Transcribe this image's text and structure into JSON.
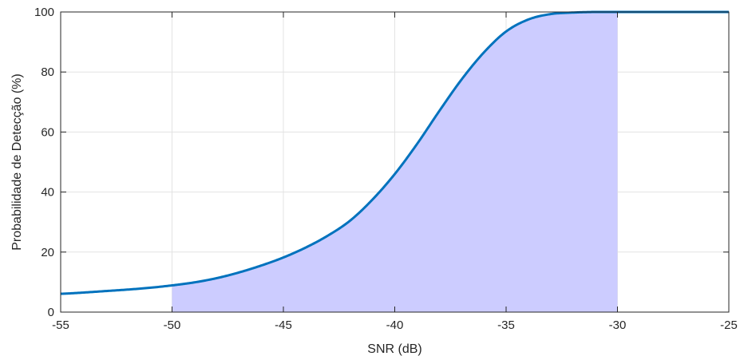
{
  "chart_data": {
    "type": "line",
    "xlabel": "SNR (dB)",
    "ylabel": "Probabilidade de Detecção (%)",
    "xlim": [
      -55,
      -25
    ],
    "ylim": [
      0,
      100
    ],
    "xticks": [
      -55,
      -50,
      -45,
      -40,
      -35,
      -30,
      -25
    ],
    "yticks": [
      0,
      20,
      40,
      60,
      80,
      100
    ],
    "xtick_labels": [
      "-55",
      "-50",
      "-45",
      "-40",
      "-35",
      "-30",
      "-25"
    ],
    "ytick_labels": [
      "0",
      "20",
      "40",
      "60",
      "80",
      "100"
    ],
    "grid": true,
    "series": [
      {
        "color": "#0072BD",
        "x": [
          -55,
          -54,
          -53,
          -52,
          -51,
          -50,
          -49,
          -48,
          -47,
          -46,
          -45,
          -44,
          -43,
          -42,
          -41,
          -40,
          -39,
          -38,
          -37,
          -36,
          -35,
          -34,
          -33,
          -32,
          -31,
          -30,
          -29,
          -28,
          -27,
          -26,
          -25
        ],
        "y": [
          6.1,
          6.5,
          7.0,
          7.5,
          8.1,
          8.9,
          9.9,
          11.3,
          13.2,
          15.5,
          18.2,
          21.5,
          25.5,
          30.5,
          37.5,
          46.0,
          56.0,
          67.0,
          77.5,
          86.5,
          93.5,
          97.5,
          99.3,
          99.8,
          100,
          100,
          100,
          100,
          100,
          100,
          100
        ]
      }
    ],
    "shaded_region": {
      "x_range": [
        -50,
        -30
      ],
      "color": "#CCCCFF"
    }
  }
}
